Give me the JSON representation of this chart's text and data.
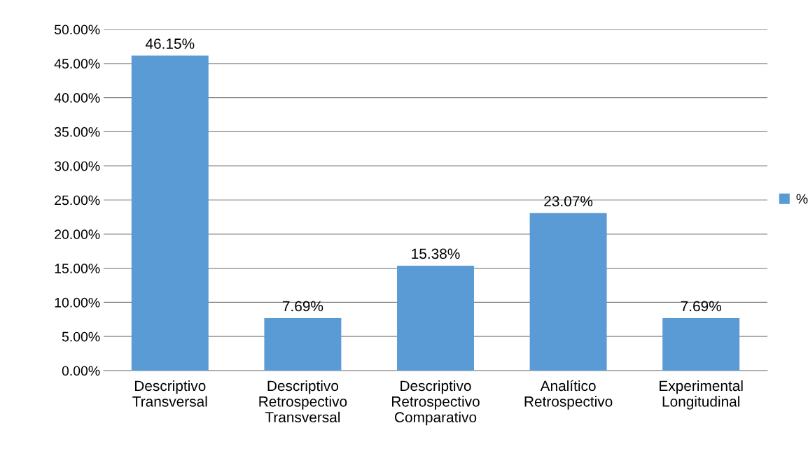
{
  "chart_data": {
    "type": "bar",
    "categories": [
      "Descriptivo\nTransversal",
      "Descriptivo\nRetrospectivo\nTransversal",
      "Descriptivo\nRetrospectivo\nComparativo",
      "Analítico\nRetrospectivo",
      "Experimental\nLongitudinal"
    ],
    "series": [
      {
        "name": "%",
        "color": "#5b9bd5",
        "values": [
          46.15,
          7.69,
          15.38,
          23.07,
          7.69
        ],
        "value_labels": [
          "46.15%",
          "7.69%",
          "15.38%",
          "23.07%",
          "7.69%"
        ]
      }
    ],
    "ylim": [
      0,
      50
    ],
    "yticks": [
      {
        "value": 0,
        "label": "0.00%"
      },
      {
        "value": 5,
        "label": "5.00%"
      },
      {
        "value": 10,
        "label": "10.00%"
      },
      {
        "value": 15,
        "label": "15.00%"
      },
      {
        "value": 20,
        "label": "20.00%"
      },
      {
        "value": 25,
        "label": "25.00%"
      },
      {
        "value": 30,
        "label": "30.00%"
      },
      {
        "value": 35,
        "label": "35.00%"
      },
      {
        "value": 40,
        "label": "40.00%"
      },
      {
        "value": 45,
        "label": "45.00%"
      },
      {
        "value": 50,
        "label": "50.00%"
      }
    ],
    "grid": "y",
    "legend": "right"
  }
}
